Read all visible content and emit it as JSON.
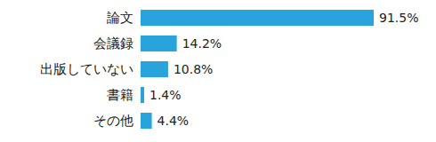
{
  "chart_data": {
    "type": "bar",
    "orientation": "horizontal",
    "categories": [
      "論文",
      "会議録",
      "出版していない",
      "書籍",
      "その他"
    ],
    "values": [
      91.5,
      14.2,
      10.8,
      1.4,
      4.4
    ],
    "value_labels": [
      "91.5%",
      "14.2%",
      "10.8%",
      "1.4%",
      "4.4%"
    ],
    "color": "#29a3dc",
    "data_labels": true,
    "tick_labels": "y",
    "grid": false
  }
}
